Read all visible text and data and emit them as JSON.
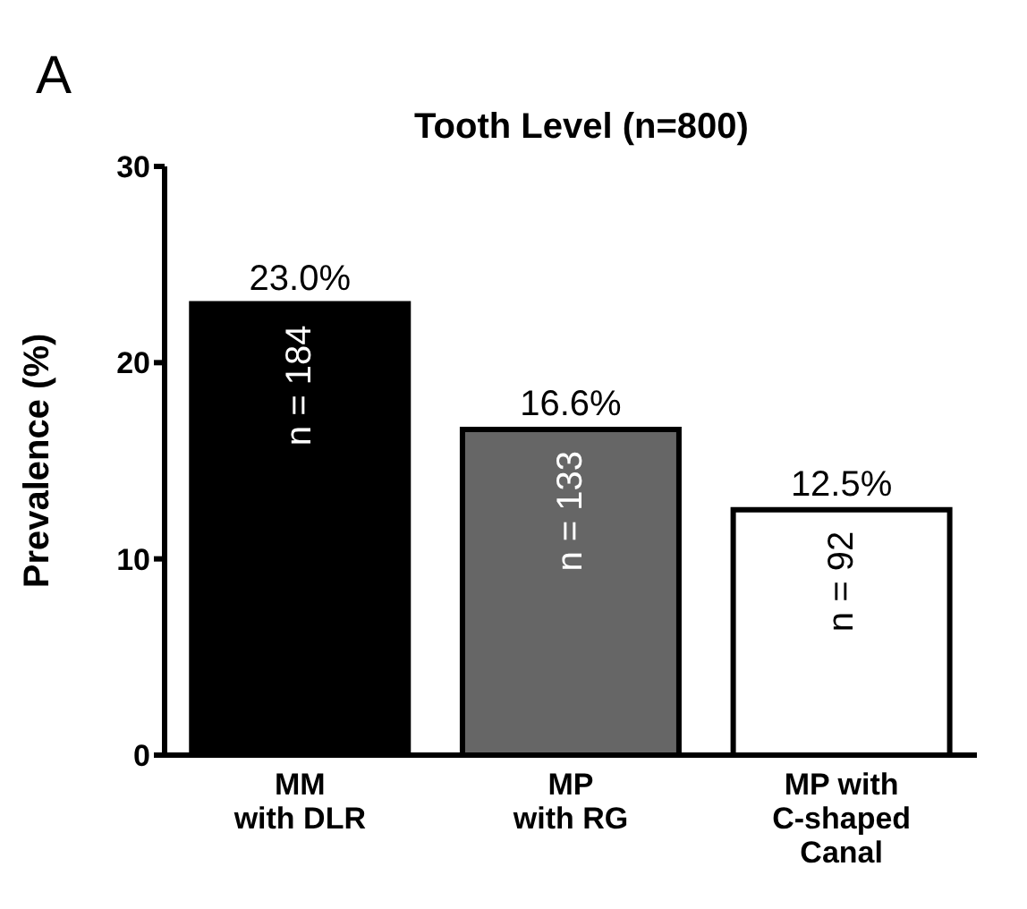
{
  "chart_data": {
    "type": "bar",
    "title": "Tooth Level (n=800)",
    "ylabel": "Prevalence (%)",
    "categories": [
      "MM\nwith DLR",
      "MP\nwith RG",
      "MP with\nC-shaped\nCanal"
    ],
    "values": [
      23.0,
      16.6,
      12.5
    ],
    "colors": [
      "#000000",
      "#666666",
      "#ffffff"
    ],
    "value_labels": [
      "23.0%",
      "16.6%",
      "12.5%"
    ],
    "ylim": [
      0,
      30
    ],
    "yticks": [
      0,
      10,
      20,
      30
    ],
    "grid": false,
    "legend": false,
    "annotations": [
      "A",
      "n = 184",
      "n = 133",
      "n = 92"
    ]
  }
}
